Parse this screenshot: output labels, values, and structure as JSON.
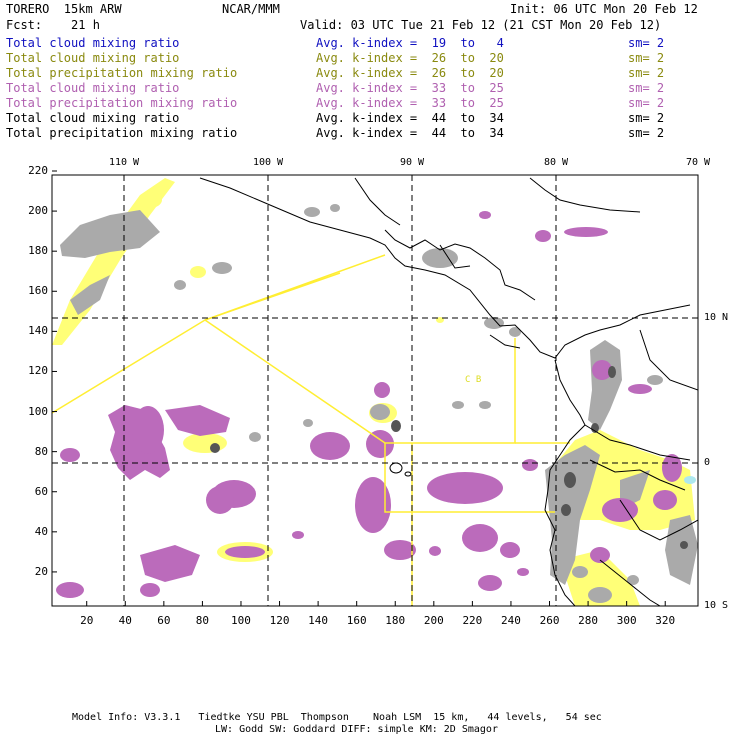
{
  "header": {
    "model": "TORERO  15km ARW",
    "org": "NCAR/MMM",
    "init": "Init: 06 UTC Mon 20 Feb 12",
    "fcst": "Fcst:    21 h",
    "valid": "Valid: 03 UTC Tue 21 Feb 12 (21 CST Mon 20 Feb 12)"
  },
  "legend": [
    {
      "field": "Total cloud mixing ratio",
      "k": "Avg. k-index =  19  to   4",
      "sm": "sm= 2",
      "color": "#1010c0"
    },
    {
      "field": "Total cloud mixing ratio",
      "k": "Avg. k-index =  26  to  20",
      "sm": "sm= 2",
      "color": "#8a8a10"
    },
    {
      "field": "Total precipitation mixing ratio",
      "k": "Avg. k-index =  26  to  20",
      "sm": "sm= 2",
      "color": "#8a8a10"
    },
    {
      "field": "Total cloud mixing ratio",
      "k": "Avg. k-index =  33  to  25",
      "sm": "sm= 2",
      "color": "#b060b0"
    },
    {
      "field": "Total precipitation mixing ratio",
      "k": "Avg. k-index =  33  to  25",
      "sm": "sm= 2",
      "color": "#b060b0"
    },
    {
      "field": "Total cloud mixing ratio",
      "k": "Avg. k-index =  44  to  34",
      "sm": "sm= 2",
      "color": "#000000"
    },
    {
      "field": "Total precipitation mixing ratio",
      "k": "Avg. k-index =  44  to  34",
      "sm": "sm= 2",
      "color": "#000000"
    }
  ],
  "map": {
    "top_lon_labels": [
      "110 W",
      "100 W",
      "90 W",
      "80 W",
      "70 W"
    ],
    "right_lat_labels": [
      "10 N",
      "0",
      "10 S"
    ],
    "left_ticks": [
      "220",
      "200",
      "180",
      "160",
      "140",
      "120",
      "100",
      "80",
      "60",
      "40",
      "20"
    ],
    "bottom_ticks": [
      "20",
      "40",
      "60",
      "80",
      "100",
      "120",
      "140",
      "160",
      "180",
      "200",
      "220",
      "240",
      "260",
      "280",
      "300",
      "320"
    ],
    "colors": {
      "yellow": "#ffff66",
      "gray": "#a8a8a8",
      "purple": "#b866b8",
      "dark": "#505050",
      "line": "#ffee33"
    },
    "annotation_text": "C  B"
  },
  "footer": {
    "line1": "Model Info: V3.3.1   Tiedtke YSU PBL  Thompson    Noah LSM  15 km,   44 levels,   54 sec",
    "line2": "LW: Godd SW: Goddard DIFF: simple KM: 2D Smagor"
  }
}
